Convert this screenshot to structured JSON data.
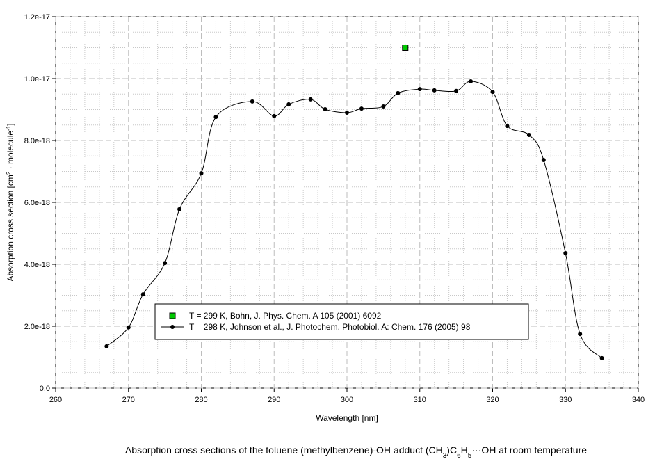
{
  "chart_data": {
    "type": "line",
    "x_label": "Wavelength [nm]",
    "y_label": [
      {
        "text": "Absorption cross section [cm"
      },
      {
        "text": "2",
        "shift": "sup"
      },
      {
        "text": " · molecule"
      },
      {
        "text": "-1",
        "shift": "sup"
      },
      {
        "text": "]"
      }
    ],
    "caption": [
      {
        "text": "Absorption cross sections of the toluene (methylbenzene)-OH adduct (CH"
      },
      {
        "text": "3",
        "shift": "sub"
      },
      {
        "text": ")C"
      },
      {
        "text": "6",
        "shift": "sub"
      },
      {
        "text": "H"
      },
      {
        "text": "5",
        "shift": "sub"
      },
      {
        "text": "···OH at room temperature"
      }
    ],
    "xlim": [
      260,
      340
    ],
    "xticks": [
      260,
      270,
      280,
      290,
      300,
      310,
      320,
      330,
      340
    ],
    "ylim": [
      0,
      1.2e-17
    ],
    "yticks": [
      {
        "value": 0,
        "label": "0.0"
      },
      {
        "value": 2e-18,
        "label": "2.0e-18"
      },
      {
        "value": 4e-18,
        "label": "4.0e-18"
      },
      {
        "value": 6e-18,
        "label": "6.0e-18"
      },
      {
        "value": 8e-18,
        "label": "8.0e-18"
      },
      {
        "value": 1e-17,
        "label": "1.0e-17"
      },
      {
        "value": 1.2e-17,
        "label": "1.2e-17"
      }
    ],
    "grid": true,
    "series": [
      {
        "name": "T = 299 K, Bohn, J. Phys. Chem. A 105 (2001) 6092",
        "color": "#00c800",
        "marker": "square",
        "line": false,
        "x": [
          308
        ],
        "values": [
          1.1e-17
        ]
      },
      {
        "name": "T = 298 K, Johnson et al., J. Photochem. Photobiol. A: Chem. 176 (2005) 98",
        "color": "#000000",
        "marker": "circle",
        "line": true,
        "x": [
          267,
          270,
          272,
          275,
          277,
          280,
          282,
          287,
          290,
          292,
          295,
          297,
          300,
          302,
          305,
          307,
          310,
          312,
          315,
          317,
          320,
          322,
          325,
          327,
          330,
          332,
          335
        ],
        "values": [
          1.35e-18,
          1.96e-18,
          3.03e-18,
          4.04e-18,
          5.78e-18,
          6.94e-18,
          8.76e-18,
          9.26e-18,
          8.79e-18,
          9.17e-18,
          9.33e-18,
          9.01e-18,
          8.9e-18,
          9.03e-18,
          9.1e-18,
          9.53e-18,
          9.66e-18,
          9.62e-18,
          9.6e-18,
          9.91e-18,
          9.57e-18,
          8.47e-18,
          8.18e-18,
          7.37e-18,
          4.36e-18,
          1.75e-18,
          9.7e-19
        ]
      }
    ]
  }
}
